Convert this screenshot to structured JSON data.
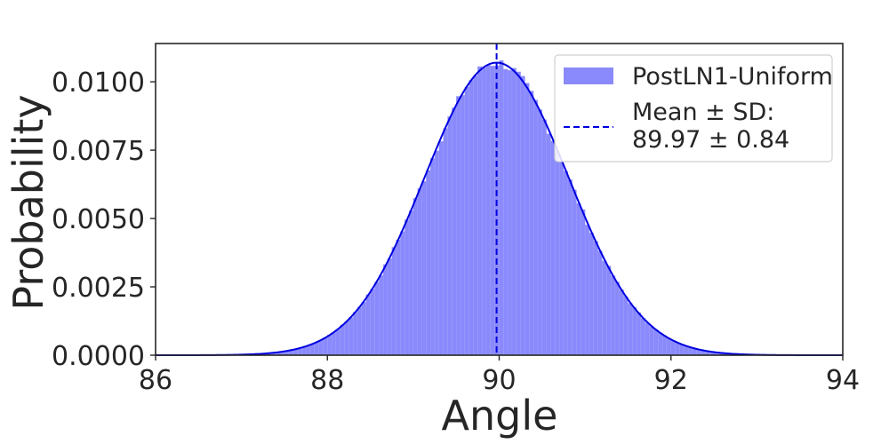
{
  "chart_data": {
    "type": "histogram",
    "xlabel": "Angle",
    "ylabel": "Probability",
    "xlim": [
      86,
      94
    ],
    "ylim": [
      0,
      0.0114
    ],
    "xticks": [
      86,
      88,
      90,
      92,
      94
    ],
    "xtick_labels": [
      "86",
      "88",
      "90",
      "92",
      "94"
    ],
    "yticks": [
      0,
      0.0025,
      0.005,
      0.0075,
      0.01
    ],
    "ytick_labels": [
      "0.0000",
      "0.0025",
      "0.0050",
      "0.0075",
      "0.0100"
    ],
    "grid": false,
    "legend": {
      "placement": "top-right",
      "hist_label": "PostLN1-Uniform",
      "mean_label_line1": "Mean ± SD:",
      "mean_label_line2": "89.97 ± 0.84"
    },
    "series": [
      {
        "name": "PostLN1-Uniform",
        "distribution": "normal",
        "mean": 89.97,
        "sd": 0.84,
        "bin_width": 0.05,
        "bin_range": [
          86.5,
          93.5
        ],
        "peak_probability": 0.0107
      }
    ],
    "mean_line_x": 89.97,
    "colors": {
      "hist_fill": "#8a8afc",
      "kde_line": "#0000e0",
      "mean_line": "#0000e0",
      "axes": "#262626"
    }
  }
}
